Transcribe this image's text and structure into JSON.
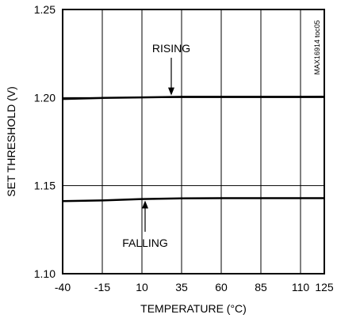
{
  "chart_data": {
    "type": "line",
    "xlabel": "TEMPERATURE (°C)",
    "ylabel": "SET THRESHOLD (V)",
    "xlim": [
      -40,
      125
    ],
    "ylim": [
      1.1,
      1.25
    ],
    "x_ticks": [
      -40,
      -15,
      10,
      35,
      60,
      85,
      110,
      125
    ],
    "x_tick_labels": [
      "-40",
      "-15",
      "10",
      "35",
      "60",
      "85",
      "110",
      "125"
    ],
    "y_ticks": [
      1.1,
      1.15,
      1.2,
      1.25
    ],
    "y_tick_labels": [
      "1.10",
      "1.15",
      "1.20",
      "1.25"
    ],
    "grid": true,
    "series": [
      {
        "name": "RISING",
        "x": [
          -40,
          -15,
          10,
          35,
          60,
          85,
          110,
          125
        ],
        "y": [
          1.1992,
          1.1998,
          1.2001,
          1.2004,
          1.2004,
          1.2004,
          1.2004,
          1.2005
        ]
      },
      {
        "name": "FALLING",
        "x": [
          -40,
          -15,
          10,
          35,
          60,
          85,
          110,
          125
        ],
        "y": [
          1.1412,
          1.1416,
          1.1424,
          1.1428,
          1.1429,
          1.1429,
          1.1429,
          1.1429
        ]
      }
    ],
    "annotations": [
      {
        "text": "RISING",
        "series": "RISING"
      },
      {
        "text": "FALLING",
        "series": "FALLING"
      }
    ],
    "code_label": "MAX16914 toc05"
  },
  "colors": {
    "line": "#000000",
    "grid": "#000000",
    "background": "#ffffff"
  }
}
